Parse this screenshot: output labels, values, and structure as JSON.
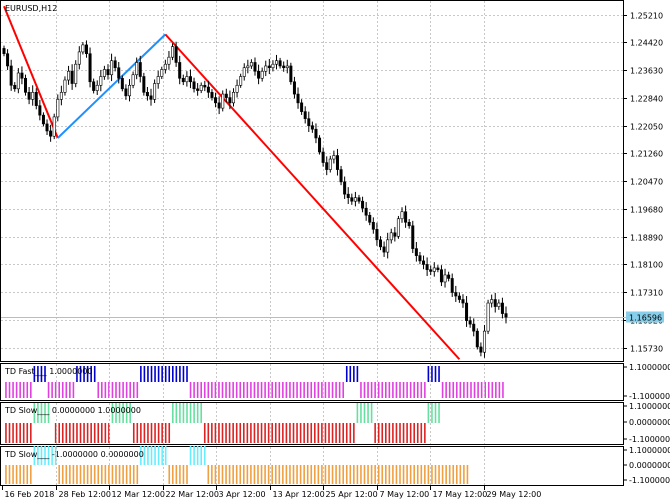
{
  "chart_title": "EURUSD,H12",
  "colors": {
    "bull": "#000000",
    "bear": "#000000",
    "zigzag_red": "#ff0000",
    "zigzag_blue": "#1e90ff",
    "price_line": "#87ceeb",
    "price_label_bg": "#87ceeb",
    "hist_blue": "#0000cc",
    "hist_magenta": "#e040e0",
    "hist_green": "#66e0a0",
    "hist_red": "#dd2222",
    "hist_cyan": "#66eeff",
    "hist_orange": "#f0a040"
  },
  "chart_data": {
    "type": "candlestick",
    "symbol": "EURUSD",
    "timeframe": "H12",
    "ylim": [
      1.1535,
      1.256
    ],
    "y_ticks": [
      "1.25210",
      "1.24420",
      "1.23630",
      "1.22840",
      "1.22050",
      "1.21260",
      "1.20470",
      "1.19680",
      "1.18890",
      "1.18100",
      "1.17310",
      "1.16520",
      "1.15730"
    ],
    "x_ticks": [
      "16 Feb 2018",
      "28 Feb 12:00",
      "12 Mar 12:00",
      "22 Mar 12:00",
      "3 Apr 12:00",
      "13 Apr 12:00",
      "25 Apr 12:00",
      "7 May 12:00",
      "17 May 12:00",
      "29 May 12:00"
    ],
    "current_price": "1.16596",
    "closes": [
      1.241,
      1.2375,
      1.232,
      1.231,
      1.2355,
      1.234,
      1.23,
      1.228,
      1.23,
      1.2262,
      1.2235,
      1.221,
      1.219,
      1.2175,
      1.223,
      1.228,
      1.23,
      1.2335,
      1.236,
      1.2325,
      1.238,
      1.2415,
      1.2435,
      1.241,
      1.233,
      1.2305,
      1.232,
      1.2345,
      1.2365,
      1.235,
      1.239,
      1.237,
      1.234,
      1.231,
      1.229,
      1.232,
      1.235,
      1.2385,
      1.2345,
      1.23,
      1.229,
      1.228,
      1.2325,
      1.2345,
      1.2365,
      1.238,
      1.24,
      1.243,
      1.2385,
      1.234,
      1.233,
      1.2345,
      1.233,
      1.231,
      1.2305,
      1.232,
      1.2315,
      1.23,
      1.2285,
      1.227,
      1.2255,
      1.2295,
      1.2285,
      1.227,
      1.23,
      1.232,
      1.2345,
      1.237,
      1.2375,
      1.2385,
      1.236,
      1.234,
      1.236,
      1.2375,
      1.237,
      1.238,
      1.239,
      1.2375,
      1.237,
      1.2375,
      1.233,
      1.2295,
      1.227,
      1.2245,
      1.2225,
      1.2205,
      1.2195,
      1.217,
      1.213,
      1.21,
      1.208,
      1.211,
      1.212,
      1.208,
      1.2045,
      1.201,
      1.2,
      1.199,
      1.2,
      1.199,
      1.197,
      1.195,
      1.193,
      1.191,
      1.188,
      1.186,
      1.1845,
      1.188,
      1.19,
      1.189,
      1.194,
      1.196,
      1.193,
      1.192,
      1.1855,
      1.1835,
      1.182,
      1.181,
      1.1795,
      1.179,
      1.18,
      1.1795,
      1.176,
      1.178,
      1.177,
      1.173,
      1.172,
      1.171,
      1.17,
      1.165,
      1.164,
      1.162,
      1.1575,
      1.156,
      1.162,
      1.17,
      1.171,
      1.169,
      1.17,
      1.167,
      1.166
    ],
    "zigzag": [
      [
        0,
        1.2545
      ],
      [
        15,
        1.217
      ],
      [
        45,
        1.2465
      ],
      [
        127,
        1.154
      ]
    ],
    "panels": [
      {
        "label": "TD Fast___ 1.0000000",
        "ticks": [
          "1.1000000",
          "-1.1000000"
        ]
      },
      {
        "label": "TD Slow___ 0.0000000 1.0000000",
        "ticks": [
          "1.1000000",
          "0.0000000",
          "-1.1000000"
        ]
      },
      {
        "label": "TD Slow___ -1.0000000 0.0000000",
        "ticks": [
          "1.1000000",
          "0.0000000",
          "-1.1000000"
        ]
      }
    ]
  }
}
